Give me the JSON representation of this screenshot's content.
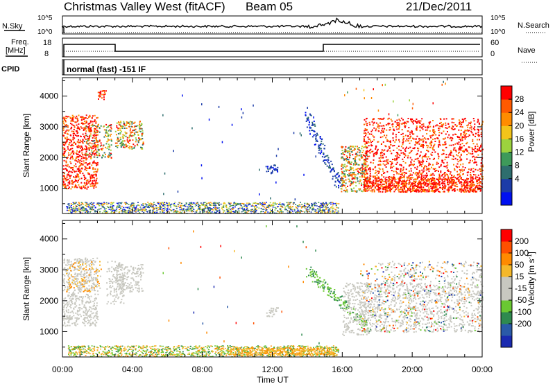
{
  "header": {
    "title": "Christmas Valley West (fitACF)",
    "beam": "Beam 05",
    "date": "21/Dec/2011"
  },
  "top_panels": {
    "nsky_label": "N.Sky",
    "nsky_ticks": [
      "10^5",
      "10^0"
    ],
    "nsearch_label": "N.Search",
    "nsearch_ticks": [
      "10^5",
      "10^0"
    ],
    "freq_label": "Freq.",
    "freq_unit": "[MHz]",
    "freq_ticks": [
      "18",
      "8"
    ],
    "nave_label": "Nave",
    "nave_ticks": [
      "60",
      "0"
    ],
    "cpid_label": "CPID",
    "cpid_text": "normal (fast) -151 IF"
  },
  "chart_data": [
    {
      "type": "heatmap",
      "name": "power-panel",
      "ylabel": "Slant Range [km]",
      "xlabel": "",
      "ylim": [
        180,
        4600
      ],
      "yticks": [
        "1000",
        "2000",
        "3000",
        "4000"
      ],
      "xlim_hours": [
        0,
        24
      ],
      "colorbar": {
        "label": "Power [dB]",
        "ticks": [
          "28",
          "24",
          "20",
          "16",
          "12",
          "8",
          "4"
        ],
        "colors": [
          "#0010f0",
          "#1c3ca8",
          "#2e6e6e",
          "#3e9a5a",
          "#9cd23e",
          "#f2c41a",
          "#ff8c00",
          "#ff5a00",
          "#ff0000"
        ]
      }
    },
    {
      "type": "heatmap",
      "name": "velocity-panel",
      "ylabel": "Slant Range [km]",
      "xlabel": "Time UT",
      "ylim": [
        180,
        4600
      ],
      "yticks": [
        "1000",
        "2000",
        "3000",
        "4000"
      ],
      "xticks": [
        "00:00",
        "04:00",
        "08:00",
        "12:00",
        "16:00",
        "20:00",
        "00:00"
      ],
      "colorbar": {
        "label": "Velocity [m s-1]",
        "ticks": [
          "200",
          "100",
          "50",
          "15",
          "-15",
          "-50",
          "-100",
          "-200"
        ],
        "colors": [
          "#1a2ab0",
          "#2a5aa8",
          "#2f8a4f",
          "#6ac832",
          "#c8c8c0",
          "#c8c8c0",
          "#f5b82a",
          "#ff8a00",
          "#ff5000",
          "#ff0000"
        ]
      }
    }
  ]
}
